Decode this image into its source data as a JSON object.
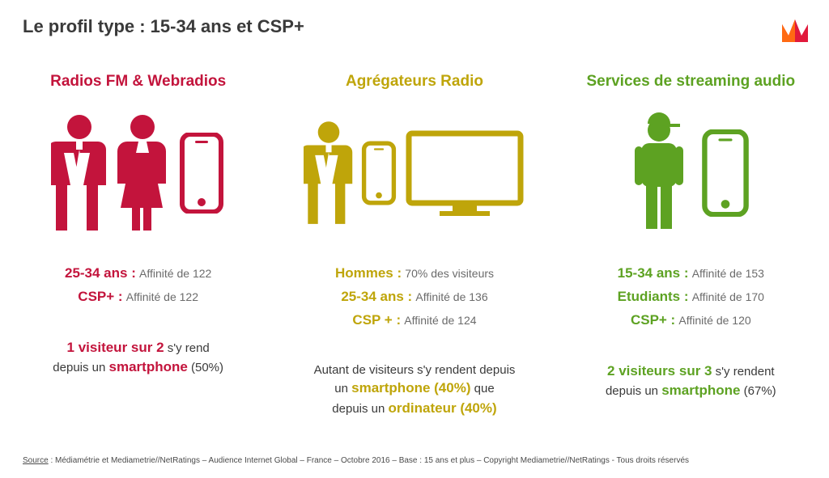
{
  "title": "Le profil type : 15-34 ans et CSP+",
  "colors": {
    "red": "#c3143c",
    "gold": "#bfa50a",
    "green": "#5da222",
    "text": "#3a3a3a",
    "subtext": "#6b6b6b",
    "logo_orange": "#ff6a13",
    "logo_red": "#e11a3c"
  },
  "columns": {
    "radio": {
      "title": "Radios FM & Webradios",
      "stats": [
        {
          "label": "25-34 ans :",
          "val": "Affinité de 122"
        },
        {
          "label": "CSP+ :",
          "val": "Affinité de 122"
        }
      ],
      "bottom_html": "<span class='strong c-red'>1 visiteur sur 2</span> s'y rend<br>depuis un <span class='strong c-red'>smartphone</span> (50%)"
    },
    "agg": {
      "title": "Agrégateurs Radio",
      "stats": [
        {
          "label": "Hommes :",
          "val": "70% des visiteurs"
        },
        {
          "label": "25-34 ans :",
          "val": "Affinité de 136"
        },
        {
          "label": "CSP + :",
          "val": "Affinité de 124"
        }
      ],
      "bottom_html": "Autant de visiteurs s'y rendent depuis<br>un <span class='strong c-gold'>smartphone (40%)</span> que<br>depuis un <span class='strong c-gold'>ordinateur (40%)</span>"
    },
    "stream": {
      "title": "Services de streaming audio",
      "stats": [
        {
          "label": "15-34 ans :",
          "val": "Affinité de 153"
        },
        {
          "label": "Etudiants :",
          "val": "Affinité de 170"
        },
        {
          "label": "CSP+ :",
          "val": "Affinité de 120"
        }
      ],
      "bottom_html": "<span class='strong c-green'>2 visiteurs sur 3</span> s'y rendent<br>depuis un <span class='strong c-green'>smartphone</span> (67%)"
    }
  },
  "source_label": "Source",
  "source_text": " : Médiamétrie et Mediametrie//NetRatings – Audience Internet Global – France – Octobre 2016 – Base : 15 ans et plus – Copyright Mediametrie//NetRatings - Tous droits réservés"
}
